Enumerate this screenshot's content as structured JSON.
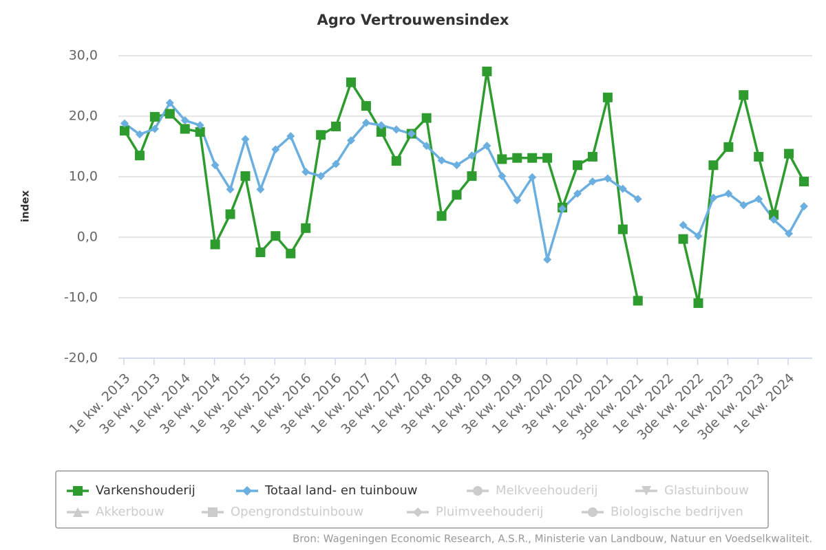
{
  "chart_data": {
    "type": "line",
    "title": "Agro Vertrouwensindex",
    "ylabel": "index",
    "source": "Bron: Wageningen Economic Research, A.S.R., Ministerie van Landbouw, Natuur en Voedselkwaliteit.",
    "categories": [
      "1e kw. 2013",
      null,
      "3e kw. 2013",
      null,
      "1e kw. 2014",
      null,
      "3e kw. 2014",
      null,
      "1e kw. 2015",
      null,
      "3e kw. 2015",
      null,
      "1e kw. 2016",
      null,
      "3e kw. 2016",
      null,
      "1e kw. 2017",
      null,
      "3e kw. 2017",
      null,
      "1e kw. 2018",
      null,
      "3e kw. 2018",
      null,
      "1e kw. 2019",
      null,
      "3e kw. 2019",
      null,
      "1e kw. 2020",
      null,
      "3e kw. 2020",
      null,
      "1e kw. 2021",
      null,
      "3de kw. 2021",
      null,
      "1e kw. 2022",
      null,
      "3de kw. 2022",
      null,
      "1e kw. 2023",
      null,
      "3de kw. 2023",
      null,
      "1e kw. 2024",
      null
    ],
    "series": [
      {
        "name": "Varkenshouderij",
        "color": "#2e9b2e",
        "marker": "square",
        "values": [
          17.6,
          13.5,
          19.9,
          20.4,
          17.9,
          17.4,
          -1.2,
          3.8,
          10.1,
          -2.5,
          0.2,
          -2.7,
          1.5,
          16.9,
          18.3,
          25.6,
          21.7,
          17.4,
          12.6,
          17.1,
          19.7,
          3.5,
          7.0,
          10.1,
          27.4,
          12.9,
          13.1,
          13.1,
          13.1,
          4.9,
          11.9,
          13.3,
          23.1,
          1.3,
          -10.5,
          null,
          null,
          -0.3,
          -10.9,
          11.9,
          14.9,
          23.5,
          13.3,
          3.7,
          13.8,
          9.2
        ]
      },
      {
        "name": "Totaal land- en tuinbouw",
        "color": "#6aafdf",
        "marker": "diamond",
        "values": [
          18.8,
          17.0,
          17.9,
          22.2,
          19.3,
          18.5,
          11.9,
          7.9,
          16.2,
          7.9,
          14.5,
          16.7,
          10.8,
          10.1,
          12.1,
          16.0,
          18.9,
          18.5,
          17.8,
          17.1,
          15.1,
          12.7,
          11.9,
          13.5,
          15.1,
          10.1,
          6.1,
          9.9,
          -3.7,
          4.7,
          7.2,
          9.2,
          9.7,
          8.0,
          6.3,
          null,
          null,
          2.0,
          0.2,
          6.5,
          7.2,
          5.3,
          6.3,
          2.9,
          0.6,
          5.1
        ]
      }
    ],
    "hidden_series": [
      {
        "name": "Melkveehouderij",
        "marker": "circle"
      },
      {
        "name": "Glastuinbouw",
        "marker": "triangle-down"
      },
      {
        "name": "Akkerbouw",
        "marker": "triangle"
      },
      {
        "name": "Opengrondstuinbouw",
        "marker": "square"
      },
      {
        "name": "Pluimveehouderij",
        "marker": "diamond"
      },
      {
        "name": "Biologische bedrijven",
        "marker": "circle"
      }
    ],
    "hidden_color": "#cccccc",
    "ylim": [
      -20,
      30
    ],
    "yticks": [
      {
        "value": -20,
        "label": "-20,0"
      },
      {
        "value": -10,
        "label": "-10,0"
      },
      {
        "value": 0,
        "label": "0,0"
      },
      {
        "value": 10,
        "label": "10,0"
      },
      {
        "value": 20,
        "label": "20,0"
      },
      {
        "value": 30,
        "label": "30,0"
      }
    ],
    "grid": true
  }
}
